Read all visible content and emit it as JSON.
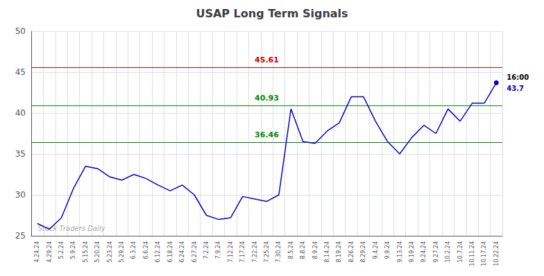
{
  "chart_data": {
    "type": "line",
    "title": "USAP Long Term Signals",
    "categories": [
      "4.24.24",
      "4.29.24",
      "5.2.24",
      "5.9.24",
      "5.15.24",
      "5.20.24",
      "5.23.24",
      "5.29.24",
      "6.3.24",
      "6.6.24",
      "6.12.24",
      "6.18.24",
      "6.24.24",
      "6.27.24",
      "7.2.24",
      "7.9.24",
      "7.12.24",
      "7.17.24",
      "7.22.24",
      "7.25.24",
      "7.30.24",
      "8.5.24",
      "8.8.24",
      "8.9.24",
      "8.14.24",
      "8.19.24",
      "8.26.24",
      "8.29.24",
      "9.4.24",
      "9.9.24",
      "9.13.24",
      "9.19.24",
      "9.24.24",
      "9.27.24",
      "10.2.24",
      "10.7.24",
      "10.11.24",
      "10.17.24",
      "10.22.24"
    ],
    "values": [
      26.5,
      25.8,
      27.2,
      30.8,
      33.5,
      33.2,
      32.2,
      31.8,
      32.5,
      32.0,
      31.2,
      30.5,
      31.2,
      30.0,
      27.5,
      27.0,
      27.2,
      29.8,
      29.5,
      29.2,
      30.0,
      40.5,
      36.5,
      36.3,
      37.8,
      38.8,
      42.0,
      42.0,
      39.0,
      36.5,
      35.0,
      37.0,
      38.5,
      37.5,
      40.5,
      39.0,
      41.2,
      41.2,
      43.7
    ],
    "color": "#0000cc",
    "ylim": [
      25,
      50
    ],
    "yticks": [
      25,
      30,
      35,
      40,
      45,
      50
    ],
    "grid": true,
    "reference_lines": [
      {
        "value": 45.61,
        "label": "45.61",
        "color": "#cc0000"
      },
      {
        "value": 40.93,
        "label": "40.93",
        "color": "#008800"
      },
      {
        "value": 36.46,
        "label": "36.46",
        "color": "#008800"
      }
    ],
    "annotations": [
      {
        "text": "16:00",
        "x": "10.22.24",
        "y": 43.7,
        "color": "#000000"
      },
      {
        "text": "43.7",
        "x": "10.22.24",
        "y": 43.7,
        "color": "#0000cc"
      },
      {
        "text": "Stock Traders Daily",
        "x": "4.24.24",
        "y": 25.4,
        "color": "#aaaaaa"
      }
    ]
  }
}
